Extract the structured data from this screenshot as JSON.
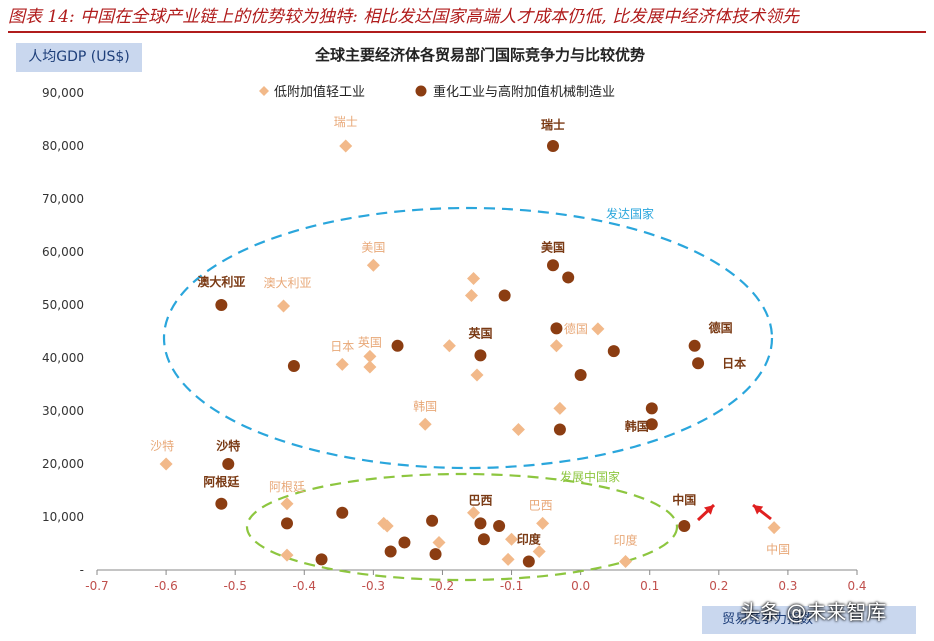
{
  "figure": {
    "title": "图表 14: 中国在全球产业链上的优势较为独特: 相比发达国家高端人才成本仍低, 比发展中经济体技术领先",
    "ylabel_box": "人均GDP (US$)",
    "xlabel_box": "贸易竞争力指数",
    "watermark": "头条 @未来智库"
  },
  "chart_data": {
    "type": "scatter",
    "title": "全球主要经济体各贸易部门国际竞争力与比较优势",
    "ylabel": "人均GDP (US$)",
    "xlabel": "",
    "xlim": [
      -0.7,
      0.4
    ],
    "ylim": [
      0,
      90000
    ],
    "xticks": [
      "-0.7",
      "-0.6",
      "-0.5",
      "-0.4",
      "-0.3",
      "-0.2",
      "-0.1",
      "0.0",
      "0.1",
      "0.2",
      "0.3",
      "0.4"
    ],
    "yticks": [
      "-",
      "10,000",
      "20,000",
      "30,000",
      "40,000",
      "50,000",
      "60,000",
      "70,000",
      "80,000",
      "90,000"
    ],
    "grid": false,
    "legend_position": "top",
    "colors": {
      "light": "#f2b98a",
      "heavy": "#8b3d12",
      "developed": "#2aa6dc",
      "developing": "#8dc63f",
      "arrow": "#e02020"
    },
    "series": [
      {
        "name": "低附加值轻工业",
        "marker": "diamond",
        "points": [
          {
            "x": -0.34,
            "y": 80000,
            "label": "瑞士"
          },
          {
            "x": -0.3,
            "y": 57500,
            "label": "美国"
          },
          {
            "x": -0.155,
            "y": 55000
          },
          {
            "x": -0.158,
            "y": 51800
          },
          {
            "x": -0.43,
            "y": 49800,
            "label": "澳大利亚"
          },
          {
            "x": 0.025,
            "y": 45500,
            "label": "德国"
          },
          {
            "x": -0.305,
            "y": 40300,
            "label": "英国"
          },
          {
            "x": -0.19,
            "y": 42300
          },
          {
            "x": -0.035,
            "y": 42300
          },
          {
            "x": -0.345,
            "y": 38800,
            "label": "日本"
          },
          {
            "x": -0.305,
            "y": 38300
          },
          {
            "x": -0.15,
            "y": 36800
          },
          {
            "x": -0.03,
            "y": 30500
          },
          {
            "x": -0.225,
            "y": 27500,
            "label": "韩国"
          },
          {
            "x": -0.09,
            "y": 26500
          },
          {
            "x": -0.6,
            "y": 20000,
            "label": "沙特"
          },
          {
            "x": -0.425,
            "y": 12500,
            "label": "阿根廷"
          },
          {
            "x": -0.155,
            "y": 10800
          },
          {
            "x": -0.055,
            "y": 8800,
            "label": "巴西"
          },
          {
            "x": -0.285,
            "y": 8800
          },
          {
            "x": -0.28,
            "y": 8300
          },
          {
            "x": -0.1,
            "y": 5800
          },
          {
            "x": -0.205,
            "y": 5200
          },
          {
            "x": -0.06,
            "y": 3500
          },
          {
            "x": -0.425,
            "y": 2800
          },
          {
            "x": -0.105,
            "y": 2000
          },
          {
            "x": 0.065,
            "y": 1600,
            "label": "印度"
          },
          {
            "x": 0.28,
            "y": 8000,
            "label": "中国"
          }
        ]
      },
      {
        "name": "重化工业与高附加值机械制造业",
        "marker": "circle",
        "points": [
          {
            "x": -0.04,
            "y": 80000,
            "label": "瑞士"
          },
          {
            "x": -0.04,
            "y": 57500,
            "label": "美国"
          },
          {
            "x": -0.018,
            "y": 55200
          },
          {
            "x": -0.52,
            "y": 50000,
            "label": "澳大利亚"
          },
          {
            "x": -0.11,
            "y": 51800
          },
          {
            "x": -0.035,
            "y": 45600
          },
          {
            "x": 0.165,
            "y": 42300,
            "label": "德国"
          },
          {
            "x": -0.265,
            "y": 42300
          },
          {
            "x": 0.048,
            "y": 41300
          },
          {
            "x": -0.145,
            "y": 40500,
            "label": "英国"
          },
          {
            "x": -0.415,
            "y": 38500
          },
          {
            "x": 0.17,
            "y": 39000,
            "label": "日本"
          },
          {
            "x": 0.0,
            "y": 36800
          },
          {
            "x": 0.103,
            "y": 30500
          },
          {
            "x": 0.103,
            "y": 27500,
            "label": "韩国"
          },
          {
            "x": -0.03,
            "y": 26500
          },
          {
            "x": -0.51,
            "y": 20000,
            "label": "沙特"
          },
          {
            "x": -0.52,
            "y": 12500,
            "label": "阿根廷"
          },
          {
            "x": -0.345,
            "y": 10800
          },
          {
            "x": -0.425,
            "y": 8800
          },
          {
            "x": -0.215,
            "y": 9300
          },
          {
            "x": -0.145,
            "y": 8800,
            "label": "巴西"
          },
          {
            "x": -0.118,
            "y": 8300
          },
          {
            "x": -0.14,
            "y": 5800
          },
          {
            "x": -0.255,
            "y": 5200
          },
          {
            "x": -0.275,
            "y": 3500
          },
          {
            "x": -0.21,
            "y": 3000
          },
          {
            "x": -0.375,
            "y": 2000
          },
          {
            "x": -0.075,
            "y": 1600,
            "label": "印度"
          },
          {
            "x": 0.15,
            "y": 8300,
            "label": "中国"
          }
        ]
      }
    ],
    "annotations": [
      {
        "text": "发达国家",
        "group": "developed"
      },
      {
        "text": "发展中国家",
        "group": "developing"
      }
    ]
  }
}
